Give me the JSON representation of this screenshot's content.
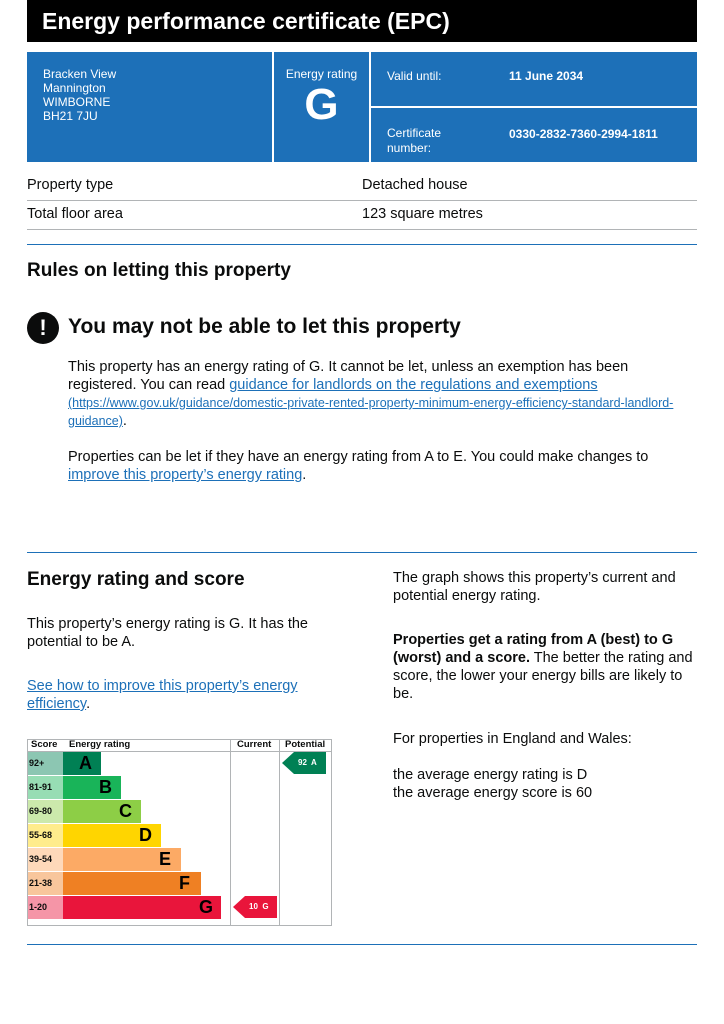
{
  "header": {
    "title": "Energy performance certificate (EPC)"
  },
  "summary": {
    "address": [
      "Bracken View",
      "Mannington",
      "WIMBORNE",
      "BH21 7JU"
    ],
    "rating_label": "Energy rating",
    "rating": "G",
    "valid_until_label": "Valid until:",
    "valid_until": "11 June 2034",
    "certificate_label_1": "Certificate",
    "certificate_label_2": "number:",
    "certificate_number": "0330-2832-7360-2994-1811"
  },
  "property": {
    "rows": [
      {
        "label": "Property type",
        "value": "Detached house"
      },
      {
        "label": "Total floor area",
        "value": "123 square metres"
      }
    ]
  },
  "letting": {
    "heading": "Rules on letting this property",
    "warning_icon": "!",
    "warning_title": "You may not be able to let this property",
    "p1_a": "This property has an energy rating of G. It cannot be let, unless an exemption has been registered. You can read ",
    "p1_link": "guidance for landlords on the regulations and exemptions",
    "p1_url": "(https://www.gov.uk/guidance/domestic-private-rented-property-minimum-energy-efficiency-standard-landlord-guidance)",
    "p1_end": ".",
    "p2_a": "Properties can be let if they have an energy rating from A to E. You could make changes to ",
    "p2_link": "improve this property’s energy rating",
    "p2_end": "."
  },
  "rating_section": {
    "heading": "Energy rating and score",
    "p1": "This property’s energy rating is G. It has the potential to be A.",
    "link": "See how to improve this property’s energy efficiency",
    "link_end": ".",
    "r1": "The graph shows this property’s current and potential energy rating.",
    "r2_bold": "Properties get a rating from A (best) to G (worst) and a score.",
    "r2_rest": " The better the rating and score, the lower your energy bills are likely to be.",
    "r3": "For properties in England and Wales:",
    "r4": "the average energy rating is D",
    "r5": "the average energy score is 60"
  },
  "chart_data": {
    "type": "bar",
    "headers": {
      "score": "Score",
      "rating": "Energy rating",
      "current": "Current",
      "potential": "Potential"
    },
    "bands": [
      {
        "letter": "A",
        "range": "92+",
        "color": "#008054"
      },
      {
        "letter": "B",
        "range": "81-91",
        "color": "#19b459"
      },
      {
        "letter": "C",
        "range": "69-80",
        "color": "#8dce46"
      },
      {
        "letter": "D",
        "range": "55-68",
        "color": "#ffd500"
      },
      {
        "letter": "E",
        "range": "39-54",
        "color": "#fcaa65"
      },
      {
        "letter": "F",
        "range": "21-38",
        "color": "#ef8023"
      },
      {
        "letter": "G",
        "range": "1-20",
        "color": "#e9153b"
      }
    ],
    "current": {
      "score": 10,
      "letter": "G",
      "label": "10  G",
      "color": "#e9153b"
    },
    "potential": {
      "score": 92,
      "letter": "A",
      "label": "92  A",
      "color": "#008054"
    }
  }
}
